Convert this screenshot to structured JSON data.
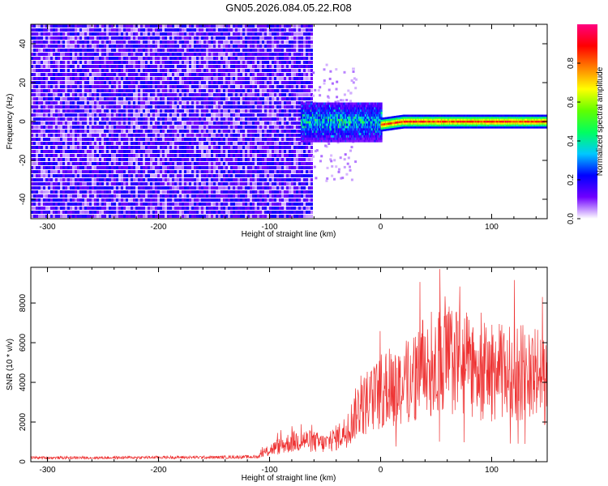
{
  "title": "GN05.2026.084.05.22.R08",
  "chart_data": [
    {
      "type": "heatmap",
      "title": "GN05.2026.084.05.22.R08",
      "xlabel": "Height of straight line (km)",
      "ylabel": "Frequency (Hz)",
      "xlim": [
        -315,
        150
      ],
      "ylim": [
        -50,
        50
      ],
      "x_ticks": [
        -300,
        -200,
        -100,
        0,
        100
      ],
      "y_ticks": [
        -40,
        -20,
        0,
        20,
        40
      ],
      "colorbar": {
        "label": "Normalized spectral amplitude",
        "range": [
          0,
          1
        ],
        "ticks": [
          0.0,
          0.2,
          0.4,
          0.6,
          0.8
        ],
        "colors": [
          "#ffffff",
          "#7000ff",
          "#0000ff",
          "#00c8ff",
          "#00ff60",
          "#60ff00",
          "#ffff00",
          "#ff8000",
          "#ff0000",
          "#ff0080"
        ]
      },
      "regions": [
        {
          "x_range": [
            -315,
            -62
          ],
          "freq_range": [
            -50,
            50
          ],
          "amplitude": 0.08
        },
        {
          "x_range": [
            -72,
            0
          ],
          "freq_range": [
            -10,
            10
          ],
          "amplitude": 0.35
        },
        {
          "x_range": [
            0,
            150
          ],
          "freq_range": [
            -3,
            3
          ],
          "amplitude": 0.9
        }
      ],
      "grid": false,
      "legend": "none"
    },
    {
      "type": "line",
      "xlabel": "Height of straight line (km)",
      "ylabel": "SNR (10 * v/v)",
      "xlim": [
        -315,
        150
      ],
      "ylim": [
        0,
        9800
      ],
      "x_ticks": [
        -300,
        -200,
        -100,
        0,
        100
      ],
      "y_ticks": [
        0,
        2000,
        4000,
        6000,
        8000
      ],
      "line_color": "#ee3333",
      "grid": false,
      "legend": "none",
      "series": [
        {
          "x": [
            -315,
            -300,
            -250,
            -200,
            -150,
            -110,
            -100,
            -90,
            -80,
            -70,
            -60,
            -50,
            -40,
            -30,
            -20,
            -10,
            0,
            10,
            20,
            30,
            40,
            50,
            60,
            70,
            80,
            90,
            100,
            110,
            120,
            130,
            140,
            150
          ],
          "values": [
            200,
            200,
            200,
            220,
            220,
            250,
            600,
            800,
            1000,
            1100,
            1000,
            900,
            1200,
            1600,
            2700,
            3000,
            3500,
            3800,
            3900,
            4300,
            4800,
            5000,
            5200,
            5000,
            4800,
            4600,
            4500,
            4500,
            4600,
            4500,
            4400,
            4000
          ]
        }
      ]
    }
  ]
}
